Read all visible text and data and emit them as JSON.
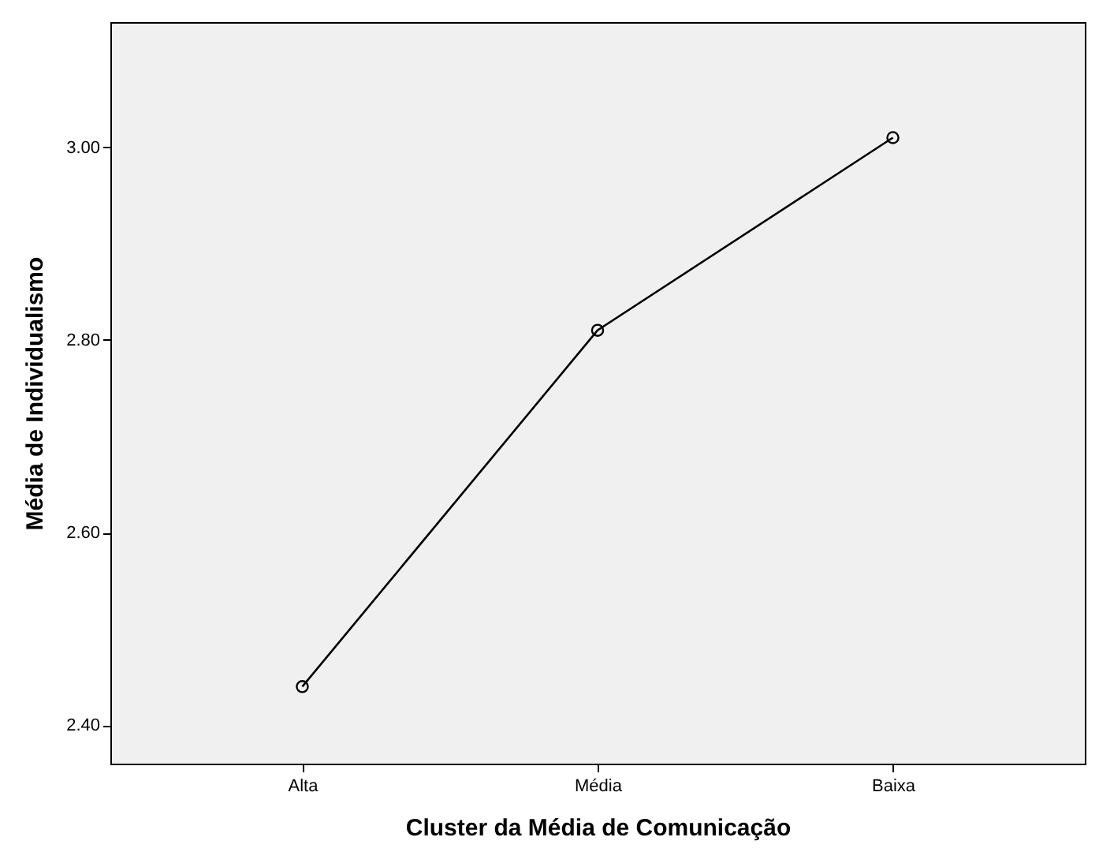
{
  "chart_data": {
    "type": "line",
    "xlabel": "Cluster da Média de Comunicação",
    "ylabel": "Média de Individualismo",
    "categories": [
      "Alta",
      "Média",
      "Baixa"
    ],
    "series": [
      {
        "color": "#000000",
        "values": [
          2.44,
          2.81,
          3.01
        ]
      }
    ],
    "ylim": [
      2.36,
      3.13
    ],
    "yticks": [
      {
        "value": 2.4,
        "label": "2.40"
      },
      {
        "value": 2.6,
        "label": "2.60"
      },
      {
        "value": 2.8,
        "label": "2.80"
      },
      {
        "value": 3.0,
        "label": "3.00"
      }
    ],
    "grid": false,
    "marker": "circle",
    "line_style": "solid"
  }
}
